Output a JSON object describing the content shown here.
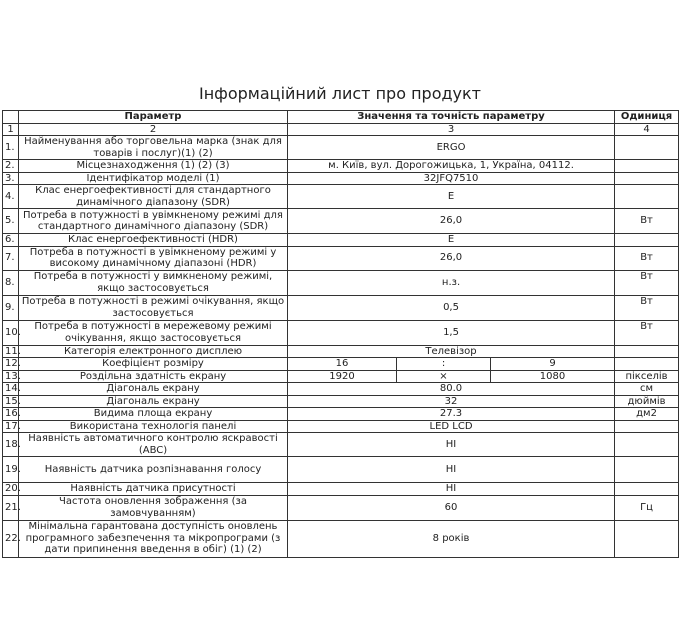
{
  "title": "Інформаційний лист про продукт",
  "headers": {
    "param": "Параметр",
    "value": "Значення та точність параметру",
    "unit": "Одиниця"
  },
  "index_row": {
    "n": "1",
    "param": "2",
    "value": "3",
    "unit": "4"
  },
  "rows": [
    {
      "n": "1.",
      "param": "Найменування або торговельна марка (знак для товарів і послуг)(1) (2)",
      "value": "ERGO",
      "unit": ""
    },
    {
      "n": "2.",
      "param": "Місцезнаходження (1) (2) (3)",
      "value": "м. Київ, вул. Дорогожицька, 1, Україна, 04112.",
      "unit": ""
    },
    {
      "n": "3.",
      "param": "Ідентифікатор моделі (1)",
      "value": "32JFQ7510",
      "unit": ""
    },
    {
      "n": "4.",
      "param": "Клас енергоефективності для стандартного динамічного діапазону (SDR)",
      "value": "E",
      "unit": ""
    },
    {
      "n": "5.",
      "param": "Потреба в потужності в увімкненому режимі для стандартного динамічного діапазону (SDR)",
      "value": "26,0",
      "unit": "Вт"
    },
    {
      "n": "6.",
      "param": "Клас енергоефективності (HDR)",
      "value": "E",
      "unit": ""
    },
    {
      "n": "7.",
      "param": "Потреба в потужності в увімкненому режимі у високому динамічному діапазоні (HDR)",
      "value": "26,0",
      "unit": "Вт"
    },
    {
      "n": "8.",
      "param": "Потреба в потужності у вимкненому режимі, якщо застосовується",
      "value": "н.з.",
      "unit": "Вт"
    },
    {
      "n": "9.",
      "param": "Потреба в потужності в режимі очікування, якщо застосовується",
      "value": "0,5",
      "unit": "Вт"
    },
    {
      "n": "10.",
      "param": "Потреба в потужності в мережевому режимі очікування, якщо застосовується",
      "value": "1,5",
      "unit": "Вт"
    },
    {
      "n": "11.",
      "param": "Категорія електронного дисплею",
      "value": "Телевізор",
      "unit": ""
    },
    {
      "n": "12.",
      "param": "Коефіцієнт розміру",
      "v1": "16",
      "v2": ":",
      "v3": "9",
      "unit": ""
    },
    {
      "n": "13.",
      "param": "Роздільна здатність екрану",
      "v1": "1920",
      "v2": "×",
      "v3": "1080",
      "unit": "пікселів"
    },
    {
      "n": "14.",
      "param": "Діагональ екрану",
      "value": "80.0",
      "unit": "см"
    },
    {
      "n": "15.",
      "param": "Діагональ екрану",
      "value": "32",
      "unit": "дюймів"
    },
    {
      "n": "16.",
      "param": "Видима площа екрану",
      "value": "27.3",
      "unit": "дм2"
    },
    {
      "n": "17.",
      "param": "Використана технологія панелі",
      "value": "LED LCD",
      "unit": ""
    },
    {
      "n": "18.",
      "param": "Наявність автоматичного контролю яскравості (ABC)",
      "value": "НІ",
      "unit": ""
    },
    {
      "n": "19.",
      "param": "Наявність датчика розпізнавання голосу",
      "value": "НІ",
      "unit": ""
    },
    {
      "n": "20.",
      "param": "Наявність датчика присутності",
      "value": "НІ",
      "unit": ""
    },
    {
      "n": "21.",
      "param": "Частота оновлення зображення (за замовчуванням)",
      "value": "60",
      "unit": "Гц"
    },
    {
      "n": "22.",
      "param": "Мінімальна гарантована доступність оновлень програмного забезпечення та мікропрограми (з дати припинення введення в обіг) (1) (2)",
      "value": "8 років",
      "unit": ""
    }
  ]
}
